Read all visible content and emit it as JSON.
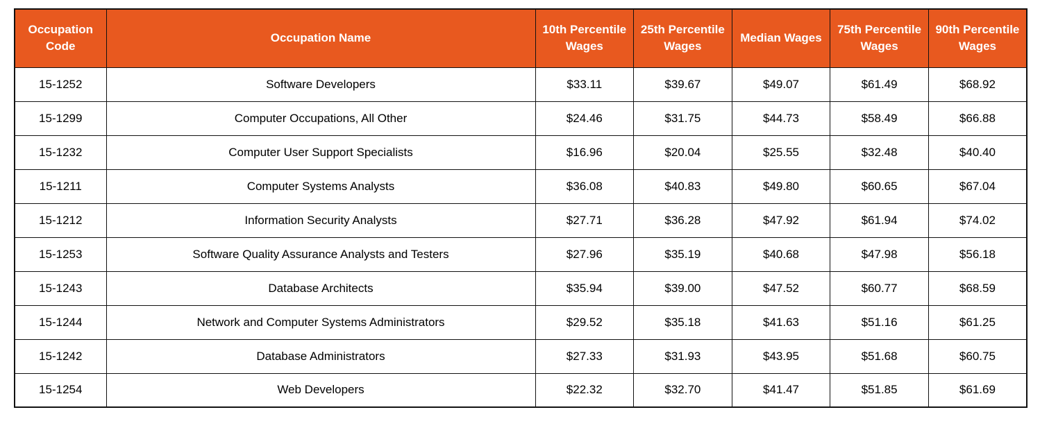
{
  "colors": {
    "header_bg": "#E8591F",
    "header_text": "#FFFFFF",
    "border": "#111111",
    "cell_text": "#000000",
    "page_bg": "#FFFFFF"
  },
  "chart_data": {
    "type": "table",
    "title": "",
    "columns": [
      "Occupation Code",
      "Occupation Name",
      "10th Percentile Wages",
      "25th Percentile Wages",
      "Median Wages",
      "75th Percentile Wages",
      "90th Percentile Wages"
    ],
    "rows": [
      [
        "15-1252",
        "Software Developers",
        "$33.11",
        "$39.67",
        "$49.07",
        "$61.49",
        "$68.92"
      ],
      [
        "15-1299",
        "Computer Occupations, All Other",
        "$24.46",
        "$31.75",
        "$44.73",
        "$58.49",
        "$66.88"
      ],
      [
        "15-1232",
        "Computer User Support Specialists",
        "$16.96",
        "$20.04",
        "$25.55",
        "$32.48",
        "$40.40"
      ],
      [
        "15-1211",
        "Computer Systems Analysts",
        "$36.08",
        "$40.83",
        "$49.80",
        "$60.65",
        "$67.04"
      ],
      [
        "15-1212",
        "Information Security Analysts",
        "$27.71",
        "$36.28",
        "$47.92",
        "$61.94",
        "$74.02"
      ],
      [
        "15-1253",
        "Software Quality Assurance Analysts and Testers",
        "$27.96",
        "$35.19",
        "$40.68",
        "$47.98",
        "$56.18"
      ],
      [
        "15-1243",
        "Database Architects",
        "$35.94",
        "$39.00",
        "$47.52",
        "$60.77",
        "$68.59"
      ],
      [
        "15-1244",
        "Network and Computer Systems Administrators",
        "$29.52",
        "$35.18",
        "$41.63",
        "$51.16",
        "$61.25"
      ],
      [
        "15-1242",
        "Database Administrators",
        "$27.33",
        "$31.93",
        "$43.95",
        "$51.68",
        "$60.75"
      ],
      [
        "15-1254",
        "Web Developers",
        "$22.32",
        "$32.70",
        "$41.47",
        "$51.85",
        "$61.69"
      ]
    ]
  }
}
